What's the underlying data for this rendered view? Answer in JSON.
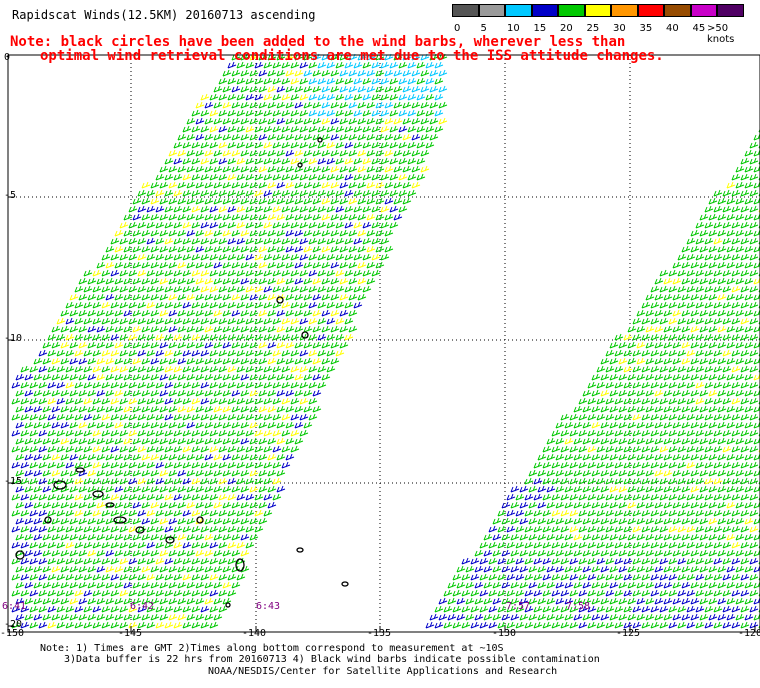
{
  "title": "Rapidscat Winds(12.5KM) 20160713 ascending",
  "note": {
    "line1": "Note: black circles have been added to the wind barbs, wherever less than",
    "line2": "optimal wind retrieval conditions are met due to the ISS attitude changes."
  },
  "legend": {
    "unit_label": ">50 knots",
    "labels": [
      "0",
      "5",
      "10",
      "15",
      "20",
      "25",
      "30",
      "35",
      "40",
      "45"
    ],
    "colors": [
      "#555555",
      "#9a9a9a",
      "#00c8ff",
      "#0000c8",
      "#00c800",
      "#ffff00",
      "#ff9600",
      "#ff0000",
      "#964b00",
      "#c800c8",
      "#500064"
    ]
  },
  "axes": {
    "x_labels": [
      "-150",
      "-145",
      "-140",
      "-135",
      "-130",
      "-125",
      "-120"
    ],
    "y_labels": [
      "0",
      "-5",
      "-10",
      "-15",
      "-20"
    ]
  },
  "time_labels": [
    "6:41",
    "6:42",
    "6:43",
    "7:57",
    "7:58"
  ],
  "footnotes": {
    "line1": "Note: 1) Times are GMT 2)Times along bottom correspond to measurement at ~10S",
    "line2": "3)Data buffer is 22 hrs from 20160713 4) Black wind barbs indicate possible contamination",
    "credit": "NOAA/NESDIS/Center for Satellite Applications and Research"
  }
}
